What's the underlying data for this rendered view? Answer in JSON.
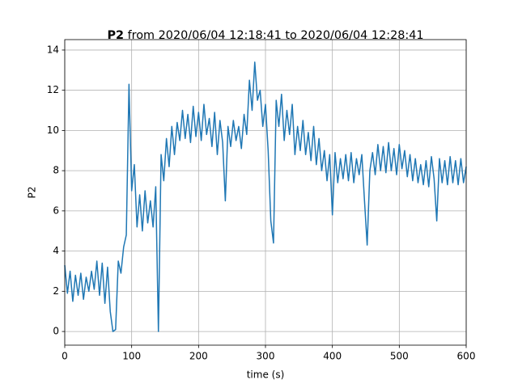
{
  "chart_data": {
    "type": "line",
    "title": [
      "P2",
      "from 2020/06/04 12:18:41 to 2020/06/04 12:28:41"
    ],
    "x_label": "time (s)",
    "y_label": "P2",
    "x": [
      0,
      4,
      8,
      12,
      16,
      20,
      24,
      28,
      32,
      36,
      40,
      44,
      48,
      52,
      56,
      60,
      64,
      68,
      72,
      76,
      80,
      84,
      88,
      92,
      96,
      100,
      104,
      108,
      112,
      116,
      120,
      124,
      128,
      132,
      136,
      140,
      144,
      148,
      152,
      156,
      160,
      164,
      168,
      172,
      176,
      180,
      184,
      188,
      192,
      196,
      200,
      204,
      208,
      212,
      216,
      220,
      224,
      228,
      232,
      236,
      240,
      244,
      248,
      252,
      256,
      260,
      264,
      268,
      272,
      276,
      280,
      284,
      288,
      292,
      296,
      300,
      304,
      308,
      312,
      316,
      320,
      324,
      328,
      332,
      336,
      340,
      344,
      348,
      352,
      356,
      360,
      364,
      368,
      372,
      376,
      380,
      384,
      388,
      392,
      396,
      400,
      404,
      408,
      412,
      416,
      420,
      424,
      428,
      432,
      436,
      440,
      444,
      448,
      452,
      456,
      460,
      464,
      468,
      472,
      476,
      480,
      484,
      488,
      492,
      496,
      500,
      504,
      508,
      512,
      516,
      520,
      524,
      528,
      532,
      536,
      540,
      544,
      548,
      552,
      556,
      560,
      564,
      568,
      572,
      576,
      580,
      584,
      588,
      592,
      596,
      600
    ],
    "series": [
      {
        "name": "P2",
        "color": "#1f77b4",
        "values": [
          3.3,
          1.9,
          3.0,
          1.5,
          2.8,
          1.8,
          2.9,
          1.6,
          2.7,
          2.0,
          3.0,
          2.1,
          3.5,
          1.8,
          3.4,
          1.4,
          3.2,
          1.0,
          0.0,
          0.1,
          3.5,
          2.9,
          4.2,
          4.8,
          12.3,
          7.0,
          8.3,
          5.2,
          6.8,
          5.0,
          7.0,
          5.4,
          6.5,
          5.2,
          7.2,
          0.0,
          8.8,
          7.5,
          9.6,
          8.2,
          10.2,
          8.8,
          10.4,
          9.5,
          11.0,
          9.6,
          10.8,
          9.4,
          11.2,
          9.7,
          10.9,
          9.5,
          11.3,
          9.8,
          10.6,
          9.2,
          10.9,
          8.8,
          10.5,
          9.4,
          6.5,
          10.2,
          9.2,
          10.5,
          9.5,
          10.2,
          9.1,
          10.8,
          9.8,
          12.5,
          11.0,
          13.4,
          11.5,
          12.0,
          10.2,
          11.3,
          9.0,
          5.5,
          4.4,
          11.5,
          10.2,
          11.8,
          9.5,
          11.0,
          9.8,
          11.3,
          8.8,
          10.2,
          9.0,
          10.5,
          8.8,
          9.9,
          8.5,
          10.2,
          8.3,
          9.6,
          8.0,
          9.0,
          7.5,
          8.8,
          5.8,
          8.9,
          7.4,
          8.6,
          7.6,
          8.8,
          7.5,
          8.9,
          7.4,
          8.6,
          7.8,
          8.8,
          6.5,
          4.3,
          8.0,
          8.9,
          7.8,
          9.3,
          8.0,
          9.2,
          7.9,
          9.4,
          8.0,
          9.1,
          7.8,
          9.3,
          8.1,
          9.0,
          7.7,
          8.8,
          7.5,
          8.6,
          7.4,
          8.3,
          7.3,
          8.5,
          7.2,
          8.7,
          7.6,
          5.5,
          8.6,
          7.4,
          8.5,
          7.3,
          8.7,
          7.4,
          8.5,
          7.3,
          8.6,
          7.4,
          8.2
        ]
      }
    ],
    "xlim": [
      0,
      600
    ],
    "xticks": [
      0,
      100,
      200,
      300,
      400,
      500,
      600
    ],
    "ylim": [
      -0.68,
      14.52
    ],
    "yticks": [
      0,
      2,
      4,
      6,
      8,
      10,
      12,
      14
    ],
    "grid": true
  }
}
